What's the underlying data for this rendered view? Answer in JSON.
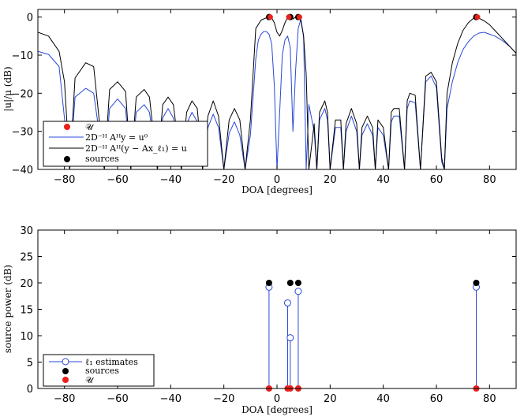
{
  "chart_data": [
    {
      "type": "line",
      "xlabel": "DOA [degrees]",
      "ylabel": "|u|/μ (dB)",
      "xlim": [
        -90,
        90
      ],
      "ylim": [
        -40,
        2
      ],
      "xticks": [
        "−80",
        "−60",
        "−40",
        "−20",
        "0",
        "20",
        "40",
        "60",
        "80"
      ],
      "yticks": [
        "0",
        "−10",
        "−20",
        "−30",
        "−40"
      ],
      "legend_position": "bottom-left",
      "legend": [
        "𝒰",
        "2D⁻ᴴ Aᴴy = u⁰",
        "2D⁻ᴴ Aᴴ(y − Ax_ℓ₁) = u",
        "sources"
      ],
      "set_U_points": {
        "x": [
          -3,
          4,
          8,
          75
        ],
        "y": [
          0,
          0,
          0,
          0
        ]
      },
      "source_points": {
        "x": [
          -3,
          5,
          8,
          75
        ],
        "y": [
          0,
          0,
          0,
          0
        ]
      },
      "series": [
        {
          "name": "2D⁻ᴴ Aᴴy = u⁰",
          "color": "#2848d8",
          "x": [
            -90,
            -86,
            -82,
            -78,
            -76,
            -72,
            -69,
            -65,
            -63,
            -60,
            -57,
            -55,
            -53,
            -50,
            -48,
            -45,
            -43,
            -41,
            -39,
            -36,
            -34,
            -32,
            -30,
            -28,
            -26,
            -24,
            -22,
            -20,
            -18,
            -16,
            -14,
            -12,
            -10,
            -8,
            -7,
            -6,
            -5,
            -4,
            -3,
            -2,
            -1,
            0,
            1,
            2,
            3,
            4,
            5,
            6,
            7,
            8,
            9,
            10,
            11,
            12,
            14,
            15,
            16,
            18,
            19,
            20,
            22,
            24,
            25,
            26,
            28,
            30,
            31,
            32,
            34,
            36,
            37,
            38,
            40,
            42,
            43,
            44,
            46,
            48,
            49,
            50,
            52,
            54,
            56,
            58,
            60,
            62,
            63,
            64,
            66,
            68,
            70,
            72,
            74,
            76,
            78,
            80,
            82,
            84,
            86,
            88,
            90
          ],
          "y": [
            -9,
            -9.8,
            -13,
            -40,
            -21,
            -18.7,
            -20,
            -40,
            -24,
            -21.5,
            -24,
            -40,
            -25,
            -23,
            -25,
            -40,
            -26.5,
            -24,
            -26.5,
            -40,
            -28,
            -25,
            -27.5,
            -40,
            -29,
            -25.5,
            -29,
            -40,
            -30.5,
            -27.5,
            -31,
            -40,
            -31,
            -11,
            -6,
            -4.5,
            -3.8,
            -3.8,
            -4.5,
            -7,
            -18,
            -40,
            -25,
            -10,
            -6,
            -5,
            -8,
            -30,
            -14,
            -3,
            -0.5,
            -5,
            -40,
            -23,
            -30,
            -40,
            -27,
            -24,
            -27,
            -40,
            -29,
            -29,
            -40,
            -30,
            -26,
            -30,
            -40,
            -31,
            -28,
            -31,
            -40,
            -29,
            -31,
            -40,
            -27.5,
            -26,
            -26,
            -40,
            -24,
            -22,
            -22.5,
            -40,
            -17,
            -15.5,
            -18.5,
            -38,
            -40,
            -24,
            -17,
            -12,
            -8.5,
            -6.5,
            -5,
            -4.2,
            -4,
            -4.5,
            -5,
            -5.8,
            -6.8,
            -8,
            -9.5
          ]
        },
        {
          "name": "2D⁻ᴴ Aᴴ(y − Ax_ℓ₁) = u",
          "color": "#000000",
          "x": [
            -90,
            -86,
            -82,
            -80,
            -78,
            -76,
            -72,
            -69,
            -65,
            -63,
            -60,
            -57,
            -55,
            -53,
            -50,
            -48,
            -45,
            -43,
            -41,
            -39,
            -36,
            -34,
            -32,
            -30,
            -28,
            -26,
            -24,
            -22,
            -20,
            -18,
            -16,
            -14,
            -12,
            -10,
            -8,
            -6,
            -4,
            -3,
            -2,
            -1,
            0,
            1,
            2,
            3,
            4,
            5,
            6,
            7,
            8,
            9,
            10,
            11,
            12,
            14,
            15,
            16,
            18,
            19,
            20,
            22,
            24,
            25,
            26,
            28,
            30,
            31,
            32,
            34,
            36,
            37,
            38,
            40,
            42,
            43,
            44,
            46,
            48,
            49,
            50,
            52,
            54,
            56,
            58,
            60,
            62,
            63,
            64,
            66,
            68,
            70,
            72,
            74,
            75,
            76,
            78,
            80,
            82,
            84,
            86,
            88,
            90
          ],
          "y": [
            -4,
            -5,
            -9,
            -17,
            -40,
            -16,
            -12,
            -13,
            -40,
            -19,
            -17,
            -19.5,
            -40,
            -21,
            -19,
            -21,
            -40,
            -23,
            -21,
            -23,
            -40,
            -25,
            -22,
            -24,
            -40,
            -26,
            -22,
            -26,
            -40,
            -27,
            -24,
            -27,
            -40,
            -27,
            -3,
            -0.8,
            -0.2,
            0,
            -0.2,
            -1.5,
            -4,
            -5,
            -3.5,
            -1.5,
            0,
            0,
            -0.5,
            0,
            0,
            -1,
            -5,
            -15,
            -40,
            -28,
            -40,
            -25,
            -22,
            -25,
            -40,
            -27,
            -27,
            -40,
            -28,
            -24,
            -28,
            -40,
            -29,
            -26,
            -29,
            -40,
            -27,
            -29,
            -40,
            -25,
            -24,
            -24,
            -40,
            -22,
            -20,
            -20.5,
            -40,
            -15.5,
            -14.5,
            -17,
            -37,
            -40,
            -20,
            -12,
            -7,
            -3.5,
            -1.5,
            -0.3,
            0,
            -0.3,
            -1,
            -2,
            -3.5,
            -5,
            -6.5,
            -8,
            -9.5
          ]
        }
      ]
    },
    {
      "type": "stem",
      "xlabel": "DOA [degrees]",
      "ylabel": "source power (dB)",
      "xlim": [
        -90,
        90
      ],
      "ylim": [
        0,
        30
      ],
      "xticks": [
        "−80",
        "−60",
        "−40",
        "−20",
        "0",
        "20",
        "40",
        "60",
        "80"
      ],
      "yticks": [
        "0",
        "5",
        "10",
        "15",
        "20",
        "25",
        "30"
      ],
      "legend_position": "bottom-left",
      "legend": [
        "ℓ₁ estimates",
        "sources",
        "𝒰"
      ],
      "estimates": {
        "x": [
          -3,
          4,
          5,
          8,
          75
        ],
        "y": [
          19.2,
          16.2,
          9.6,
          18.4,
          19.2
        ]
      },
      "sources": {
        "x": [
          -3,
          5,
          8,
          75
        ],
        "y": [
          20,
          20,
          20,
          20
        ]
      },
      "set_U": {
        "x": [
          -3,
          4,
          5,
          8,
          75
        ],
        "y": [
          0,
          0,
          0,
          0,
          0
        ]
      }
    }
  ]
}
